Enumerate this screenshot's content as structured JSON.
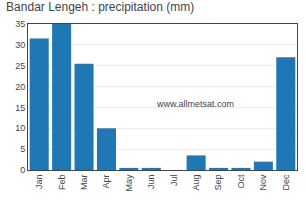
{
  "chart_data": {
    "type": "bar",
    "title": "Bandar Lengeh : precipitation (mm)",
    "categories": [
      "Jan",
      "Feb",
      "Mar",
      "Apr",
      "May",
      "Jun",
      "Jul",
      "Aug",
      "Sep",
      "Oct",
      "Nov",
      "Dec"
    ],
    "values": [
      31.5,
      35.0,
      25.5,
      10.0,
      0.5,
      0.5,
      0.0,
      3.5,
      0.5,
      0.5,
      2.0,
      27.0
    ],
    "ylim": [
      0,
      35
    ],
    "yticks": [
      0,
      5,
      10,
      15,
      20,
      25,
      30,
      35
    ],
    "grid": true,
    "annotations": [
      "www.allmetsat.com"
    ]
  }
}
